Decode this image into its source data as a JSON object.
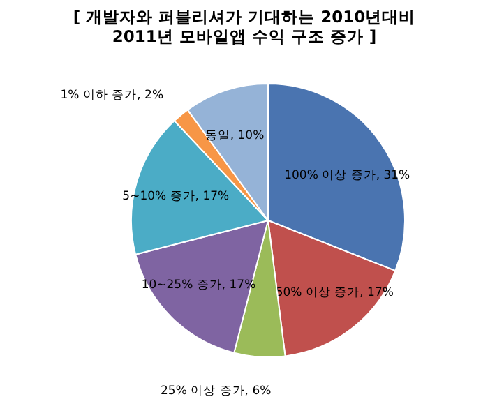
{
  "chart_data": {
    "type": "pie",
    "title": "[ 개발자와 퍼블리셔가 기대하는 2010년대비\n2011년 모바일앱 수익 구조 증가 ]",
    "categories": [
      "100% 이상 증가",
      "50% 이상 증가",
      "25% 이상 증가",
      "10~25% 증가",
      "5~10% 증가",
      "1% 이하 증가",
      "동일"
    ],
    "values": [
      31,
      17,
      6,
      17,
      17,
      2,
      10
    ],
    "value_labels": [
      "31%",
      "17%",
      "6%",
      "17%",
      "17%",
      "2%",
      "10%"
    ],
    "colors": [
      "#4a74b0",
      "#c0504d",
      "#9bbb59",
      "#7f64a2",
      "#4bacc6",
      "#f79646",
      "#95b3d7"
    ]
  }
}
